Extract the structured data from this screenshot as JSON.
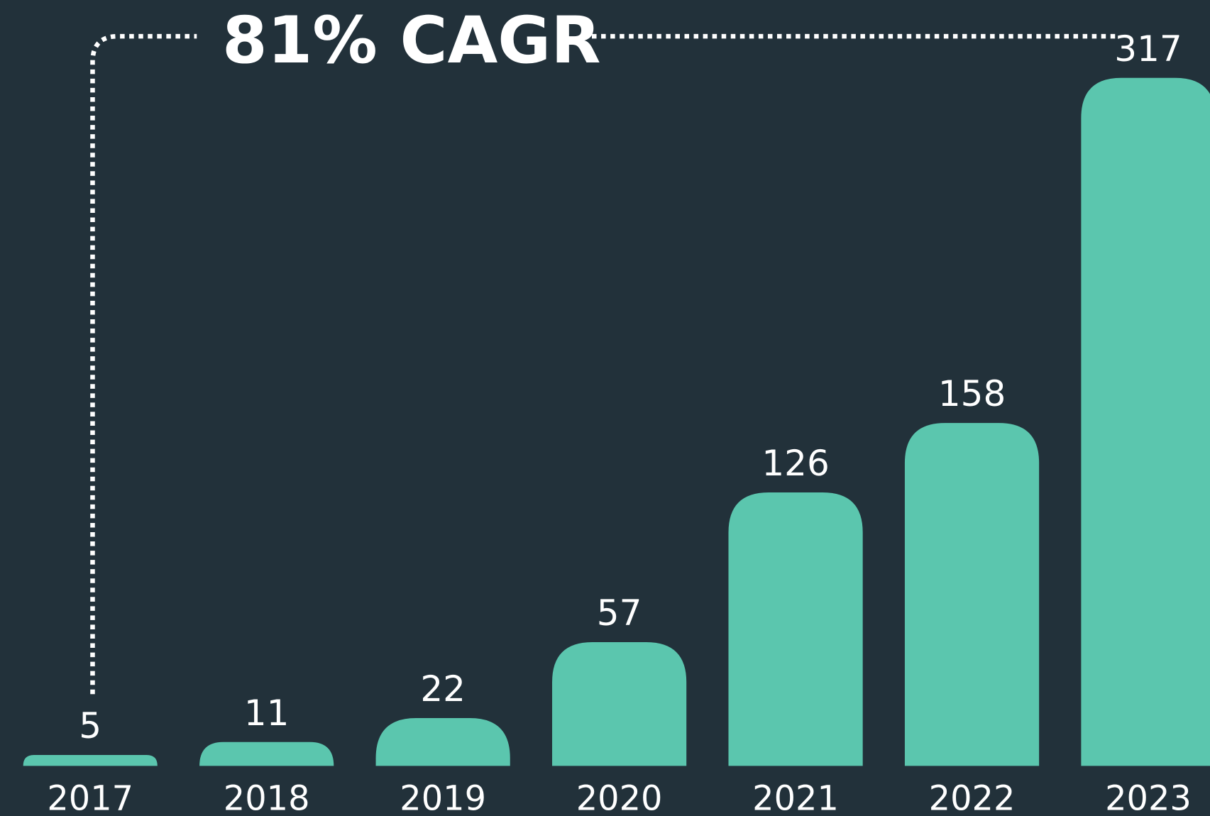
{
  "chart_data": {
    "type": "bar",
    "annotation": "81% CAGR",
    "categories": [
      "2017",
      "2018",
      "2019",
      "2020",
      "2021",
      "2022",
      "2023"
    ],
    "values": [
      5,
      11,
      22,
      57,
      126,
      158,
      317
    ],
    "color": "#5bc6ae"
  }
}
